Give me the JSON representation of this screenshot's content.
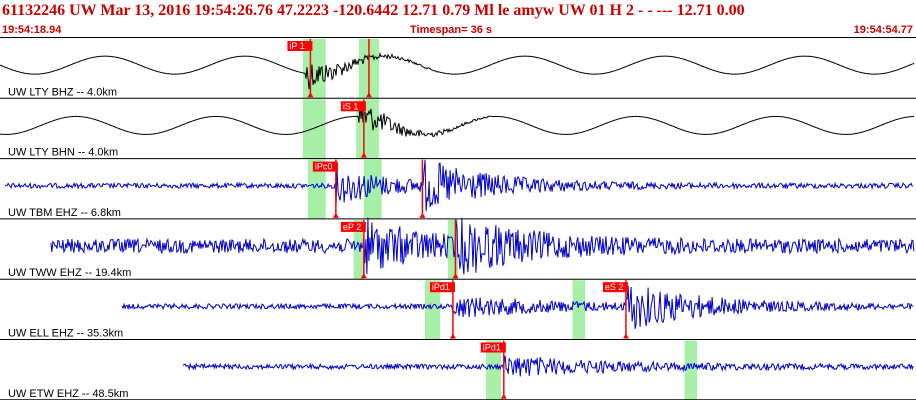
{
  "header": {
    "title": "61132246 UW Mar 13, 2016 19:54:26.76    47.2223 -120.6442 12.71 0.79 Ml le     amyw     UW 01 H    2  -  - --- 12.71 0.00",
    "start_time": "19:54:18.94",
    "timespan": "Timespan=  36 s",
    "end_time": "19:54:54.77"
  },
  "colors": {
    "header_text": "#cc0000",
    "trace_black": "#000000",
    "trace_blue": "#0000cc",
    "pick_red": "#ff0000",
    "window_green": "#a8f0a8",
    "axis": "#000000"
  },
  "panels": [
    {
      "label": "UW LTY BHZ -- 4.0km",
      "trace_color": "black",
      "style": "sine",
      "trace_start_s": 0.0,
      "trace_end_s": 36.0,
      "windows": [
        {
          "start_s": 11.9,
          "end_s": 12.8
        },
        {
          "start_s": 14.1,
          "end_s": 14.9
        }
      ],
      "picks": [
        {
          "label": "iP 1",
          "time_s": 12.2
        },
        {
          "label": "",
          "time_s": 14.5
        }
      ]
    },
    {
      "label": "UW LTY BHN -- 4.0km",
      "trace_color": "black",
      "style": "sine",
      "trace_start_s": 0.0,
      "trace_end_s": 36.0,
      "windows": [
        {
          "start_s": 11.9,
          "end_s": 12.8
        },
        {
          "start_s": 14.0,
          "end_s": 14.9
        }
      ],
      "picks": [
        {
          "label": "iS 1",
          "time_s": 14.3
        }
      ]
    },
    {
      "label": "UW TBM EHZ -- 6.8km",
      "trace_color": "blue",
      "style": "noise",
      "trace_start_s": 0.2,
      "trace_end_s": 36.3,
      "windows": [
        {
          "start_s": 12.1,
          "end_s": 12.8
        },
        {
          "start_s": 14.3,
          "end_s": 15.0
        }
      ],
      "picks": [
        {
          "label": "iPc0",
          "time_s": 13.2
        },
        {
          "label": "",
          "time_s": 16.6
        }
      ]
    },
    {
      "label": "UW TWW EHZ -- 19.4km",
      "trace_color": "blue",
      "style": "strong",
      "trace_start_s": 2.0,
      "trace_end_s": 38.4,
      "windows": [
        {
          "start_s": 13.9,
          "end_s": 14.3
        },
        {
          "start_s": 17.6,
          "end_s": 18.0
        }
      ],
      "picks": [
        {
          "label": "eP 2",
          "time_s": 14.3
        },
        {
          "label": "",
          "time_s": 17.9
        }
      ]
    },
    {
      "label": "UW ELL EHZ -- 35.3km",
      "trace_color": "blue",
      "style": "late",
      "trace_start_s": 4.8,
      "trace_end_s": 41.2,
      "windows": [
        {
          "start_s": 16.7,
          "end_s": 17.3
        },
        {
          "start_s": 22.5,
          "end_s": 23.0
        }
      ],
      "picks": [
        {
          "label": "iPd1",
          "time_s": 17.8
        },
        {
          "label": "eS 2",
          "time_s": 24.6
        }
      ]
    },
    {
      "label": "UW ETW EHZ -- 48.5km",
      "trace_color": "blue",
      "style": "late",
      "trace_start_s": 7.2,
      "trace_end_s": 43.6,
      "windows": [
        {
          "start_s": 19.1,
          "end_s": 19.7
        },
        {
          "start_s": 26.9,
          "end_s": 27.4
        }
      ],
      "picks": [
        {
          "label": "iPd1",
          "time_s": 19.8
        }
      ]
    }
  ]
}
